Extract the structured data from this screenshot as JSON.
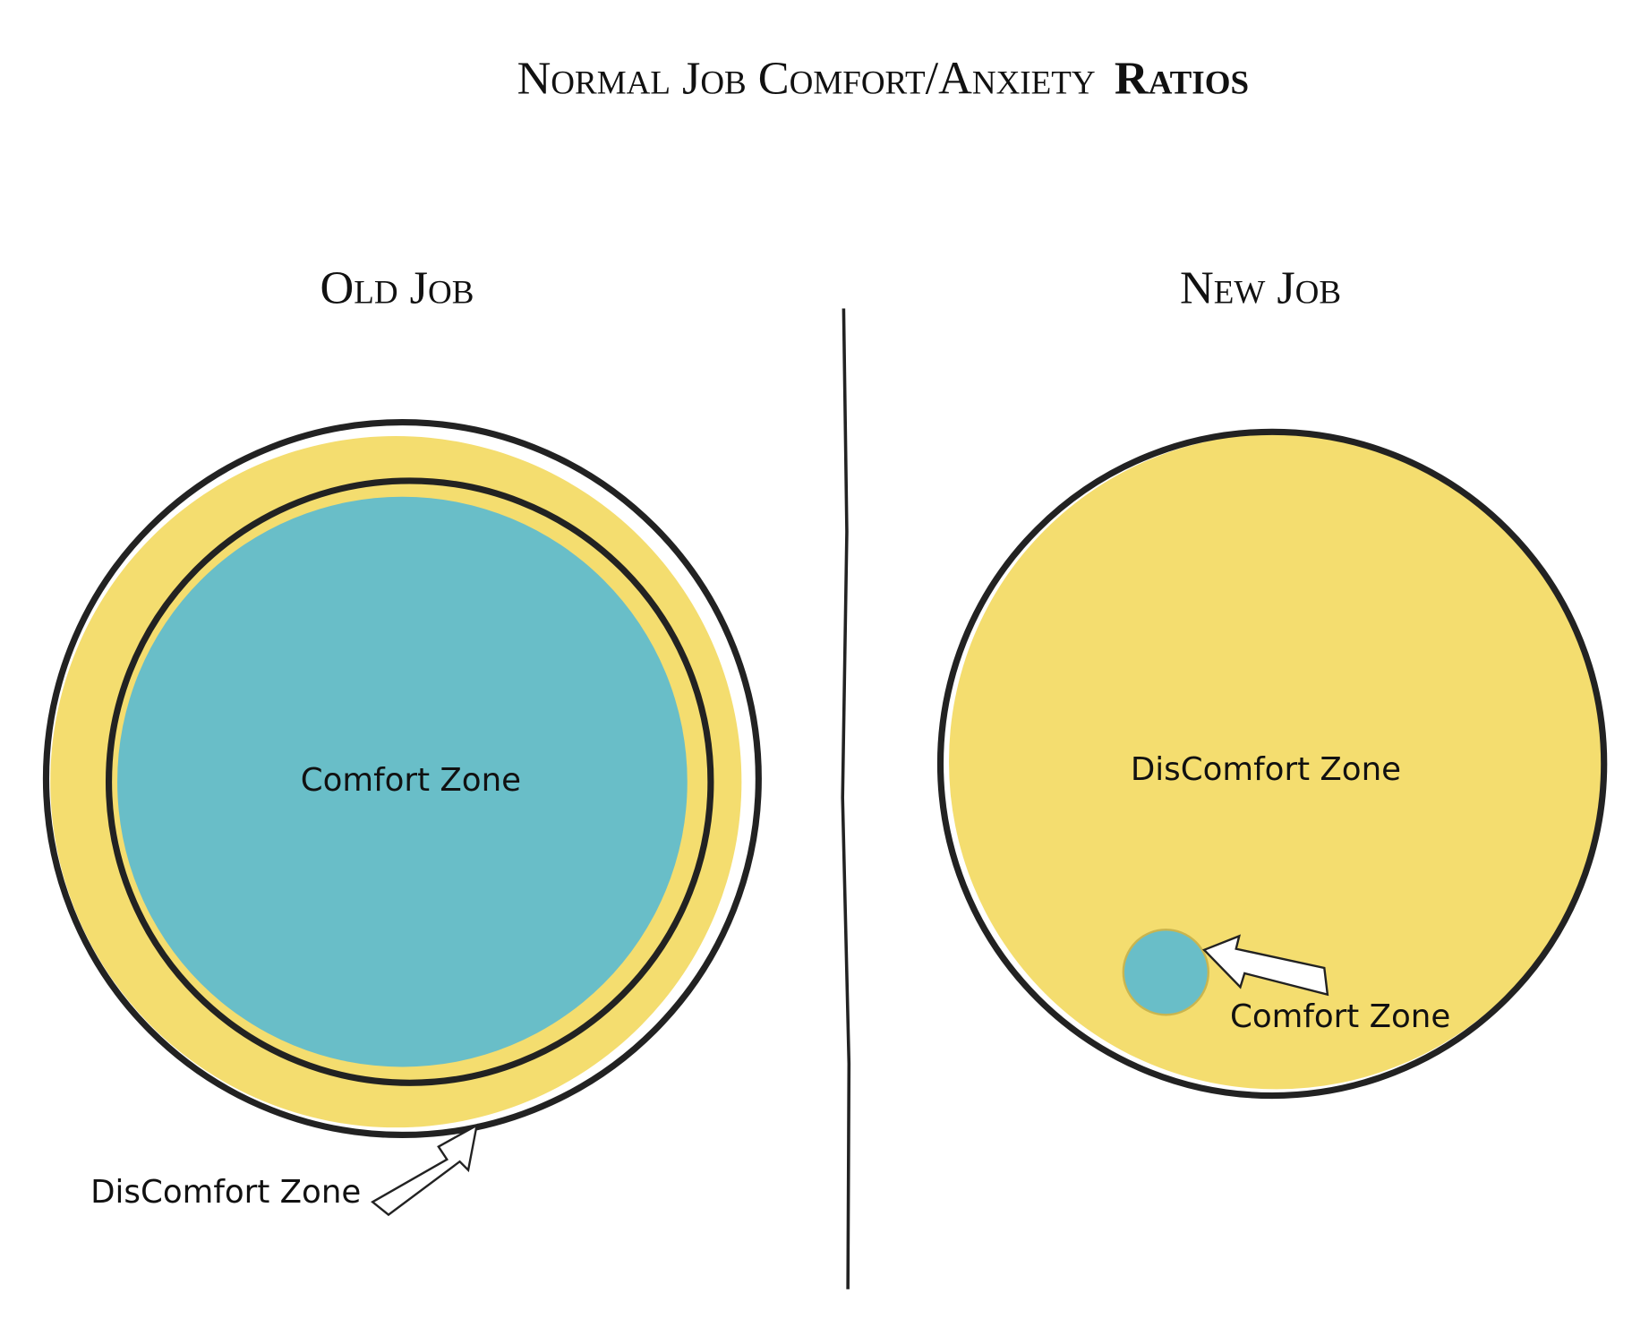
{
  "title": {
    "text": "Normal Job Comfort/Anxiety",
    "emphasis": "Ratios"
  },
  "panels": [
    {
      "title": "Old Job",
      "center_label": "Comfort Zone",
      "pointer_label": "DisComfort Zone"
    },
    {
      "title": "New Job",
      "center_label": "DisComfort Zone",
      "pointer_label": "Comfort Zone"
    }
  ]
}
